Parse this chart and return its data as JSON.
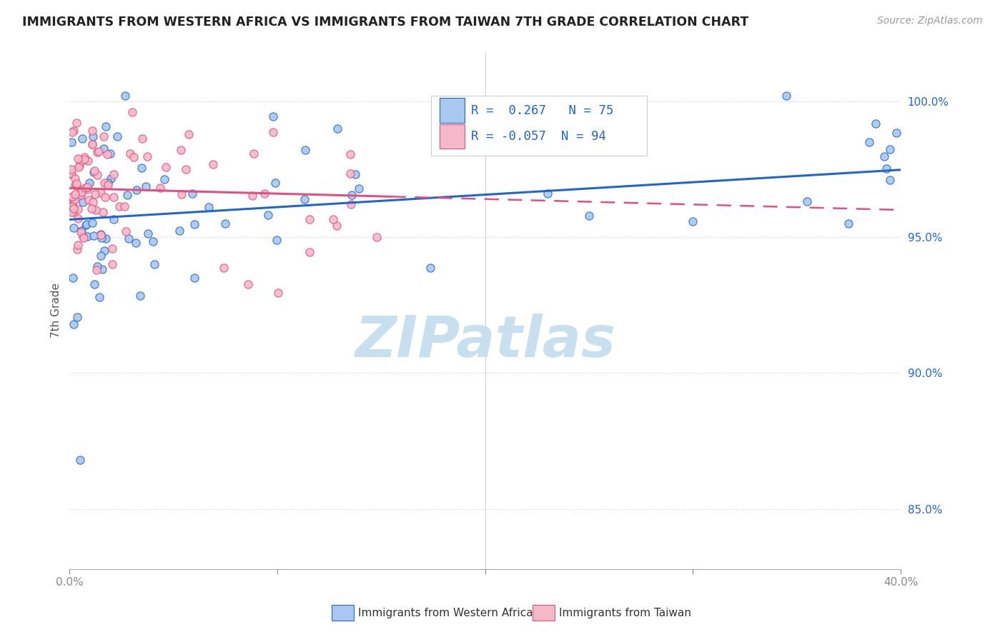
{
  "title": "IMMIGRANTS FROM WESTERN AFRICA VS IMMIGRANTS FROM TAIWAN 7TH GRADE CORRELATION CHART",
  "source": "Source: ZipAtlas.com",
  "ylabel": "7th Grade",
  "yaxis_values": [
    0.85,
    0.9,
    0.95,
    1.0
  ],
  "xlim": [
    0.0,
    0.4
  ],
  "ylim": [
    0.828,
    1.018
  ],
  "legend_label1": "Immigrants from Western Africa",
  "legend_label2": "Immigrants from Taiwan",
  "R1": 0.267,
  "N1": 75,
  "R2": -0.057,
  "N2": 94,
  "color_blue": "#a8c8f0",
  "color_pink": "#f5b8c8",
  "color_blue_line": "#2266cc",
  "color_pink_line": "#e05080",
  "watermark_color": "#c8dff0"
}
